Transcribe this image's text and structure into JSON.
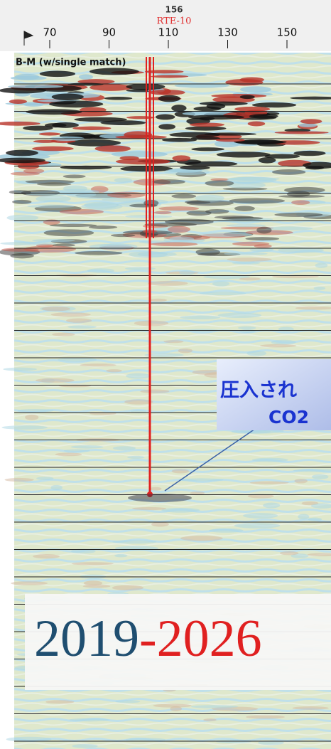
{
  "header": {
    "well_number": "156",
    "well_name": "RTE-10",
    "ticks": [
      "70",
      "90",
      "110",
      "130",
      "150"
    ]
  },
  "section": {
    "label": "B-M (w/single match)"
  },
  "callout": {
    "line1": "圧入され",
    "line2": "CO2"
  },
  "period": {
    "start": "2019",
    "separator": "-",
    "end": "2026"
  }
}
